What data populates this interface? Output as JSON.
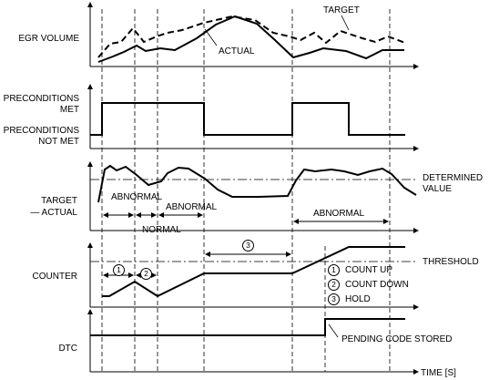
{
  "labels": {
    "egr_volume": "EGR VOLUME",
    "target": "TARGET",
    "actual": "ACTUAL",
    "preconditions_met": [
      "PRECONDITIONS",
      "MET"
    ],
    "preconditions_not_met": [
      "PRECONDITIONS",
      "NOT MET"
    ],
    "target_minus_actual": [
      "TARGET",
      "— ACTUAL"
    ],
    "determined_value": [
      "DETERMINED",
      "VALUE"
    ],
    "abnormal": "ABNORMAL",
    "normal": "NORMAL",
    "counter": "COUNTER",
    "threshold": "THRESHOLD",
    "dtc": "DTC",
    "pending_code_stored": "PENDING CODE STORED",
    "time_axis": "TIME [S]"
  },
  "counter_modes": [
    {
      "num": "1",
      "text": "COUNT UP"
    },
    {
      "num": "2",
      "text": "COUNT DOWN"
    },
    {
      "num": "3",
      "text": "HOLD"
    }
  ],
  "colors": {
    "line": "#000000",
    "background": "#ffffff"
  }
}
